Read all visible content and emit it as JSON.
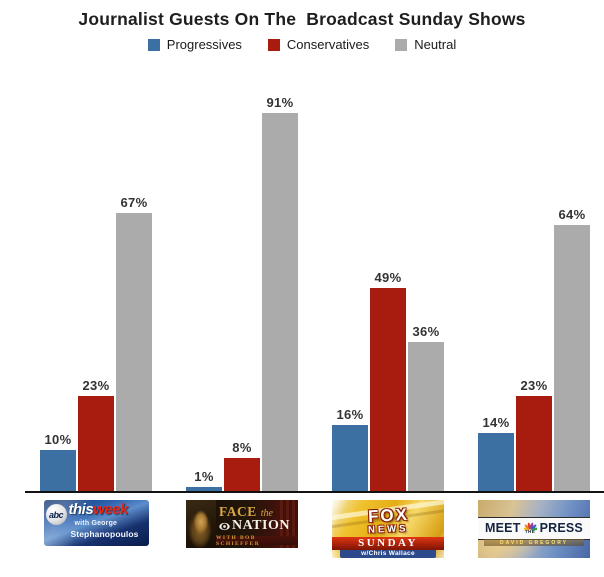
{
  "title": "Journalist Guests On The  Broadcast Sunday Shows",
  "legend": {
    "items": [
      {
        "label": "Progressives",
        "color": "#3d70a2"
      },
      {
        "label": "Conservatives",
        "color": "#a81c10"
      },
      {
        "label": "Neutral",
        "color": "#ababab"
      }
    ]
  },
  "chart_data": {
    "type": "bar",
    "title": "Journalist Guests On The  Broadcast Sunday Shows",
    "categories": [
      "ABC This Week",
      "Face the Nation",
      "Fox News Sunday",
      "Meet the Press"
    ],
    "series": [
      {
        "name": "Progressives",
        "color": "#3d70a2",
        "values": [
          10,
          1,
          16,
          14
        ]
      },
      {
        "name": "Conservatives",
        "color": "#a81c10",
        "values": [
          23,
          8,
          49,
          23
        ]
      },
      {
        "name": "Neutral",
        "color": "#ababab",
        "values": [
          67,
          91,
          36,
          64
        ]
      }
    ],
    "value_suffix": "%",
    "ylim": [
      0,
      100
    ],
    "grid": false,
    "legend_position": "top",
    "axis_color": "#121212",
    "label_color": "#333333"
  },
  "logos": {
    "this_week": {
      "network": "abc",
      "title_a": "this",
      "title_b": "week",
      "sub1": "with George",
      "sub2": "Stephanopoulos"
    },
    "face_the_nation": {
      "title_a": "FACE",
      "title_b": "the",
      "title_c": "NATION",
      "tagline": "WITH BOB SCHIEFFER"
    },
    "fox_news_sunday": {
      "title_a": "FOX",
      "title_b": "NEWS",
      "title_c": "SUNDAY",
      "tagline": "w/Chris Wallace"
    },
    "meet_the_press": {
      "title_a": "MEET",
      "title_b": "THE",
      "title_c": "PRESS",
      "tagline": "DAVID GREGORY"
    }
  }
}
